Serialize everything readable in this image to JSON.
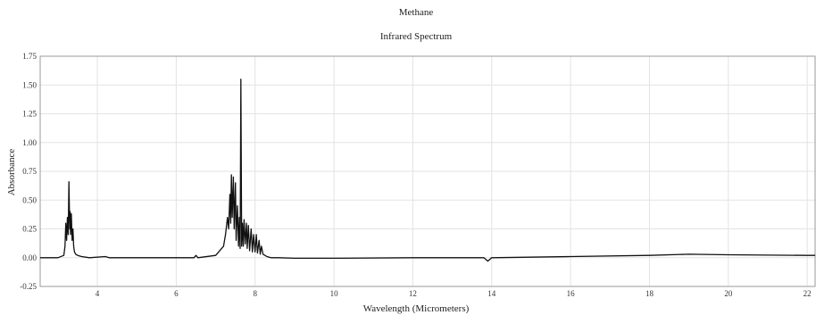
{
  "chart_data": {
    "type": "line",
    "title": "Methane",
    "subtitle": "Infrared Spectrum",
    "xlabel": "Wavelength (Micrometers)",
    "ylabel": "Absorbance",
    "xlim": [
      2.55,
      22.2
    ],
    "ylim": [
      -0.25,
      1.75
    ],
    "xticks": [
      4,
      6,
      8,
      10,
      12,
      14,
      16,
      18,
      20,
      22
    ],
    "yticks": [
      -0.25,
      0.0,
      0.25,
      0.5,
      0.75,
      1.0,
      1.25,
      1.5,
      1.75
    ],
    "ytick_labels": [
      "-0.25",
      "0.00",
      "0.25",
      "0.50",
      "0.75",
      "1.00",
      "1.25",
      "1.50",
      "1.75"
    ],
    "grid": true,
    "series": [
      {
        "x": [
          2.55,
          3.0,
          3.15,
          3.18,
          3.2,
          3.22,
          3.24,
          3.26,
          3.28,
          3.3,
          3.31,
          3.32,
          3.34,
          3.36,
          3.38,
          3.4,
          3.42,
          3.45,
          3.5,
          3.6,
          3.8,
          4.2,
          4.3,
          5.0,
          6.0,
          6.45,
          6.5,
          6.55,
          7.0,
          7.2,
          7.25,
          7.3,
          7.33,
          7.36,
          7.38,
          7.4,
          7.42,
          7.45,
          7.47,
          7.5,
          7.52,
          7.55,
          7.58,
          7.6,
          7.62,
          7.64,
          7.66,
          7.68,
          7.7,
          7.72,
          7.75,
          7.78,
          7.8,
          7.83,
          7.86,
          7.9,
          7.93,
          7.96,
          8.0,
          8.03,
          8.06,
          8.1,
          8.13,
          8.16,
          8.2,
          8.25,
          8.3,
          8.4,
          8.6,
          9.0,
          10.0,
          12.0,
          13.8,
          13.9,
          14.0,
          16.0,
          18.0,
          19.0,
          20.0,
          22.0,
          22.2
        ],
        "y": [
          0.0,
          0.0,
          0.02,
          0.1,
          0.3,
          0.15,
          0.35,
          0.2,
          0.66,
          0.25,
          0.4,
          0.2,
          0.38,
          0.15,
          0.25,
          0.1,
          0.05,
          0.03,
          0.02,
          0.01,
          0.0,
          0.01,
          0.0,
          0.0,
          0.0,
          0.0,
          0.02,
          0.0,
          0.02,
          0.1,
          0.2,
          0.35,
          0.25,
          0.55,
          0.3,
          0.72,
          0.35,
          0.7,
          0.25,
          0.65,
          0.15,
          0.45,
          0.1,
          0.35,
          0.08,
          1.55,
          0.1,
          0.3,
          0.1,
          0.33,
          0.12,
          0.3,
          0.08,
          0.28,
          0.06,
          0.25,
          0.05,
          0.2,
          0.05,
          0.2,
          0.04,
          0.15,
          0.03,
          0.1,
          0.03,
          0.02,
          0.01,
          0.0,
          0.0,
          -0.005,
          -0.005,
          0.0,
          0.0,
          -0.03,
          0.0,
          0.01,
          0.02,
          0.03,
          0.025,
          0.02,
          0.02
        ]
      }
    ]
  }
}
